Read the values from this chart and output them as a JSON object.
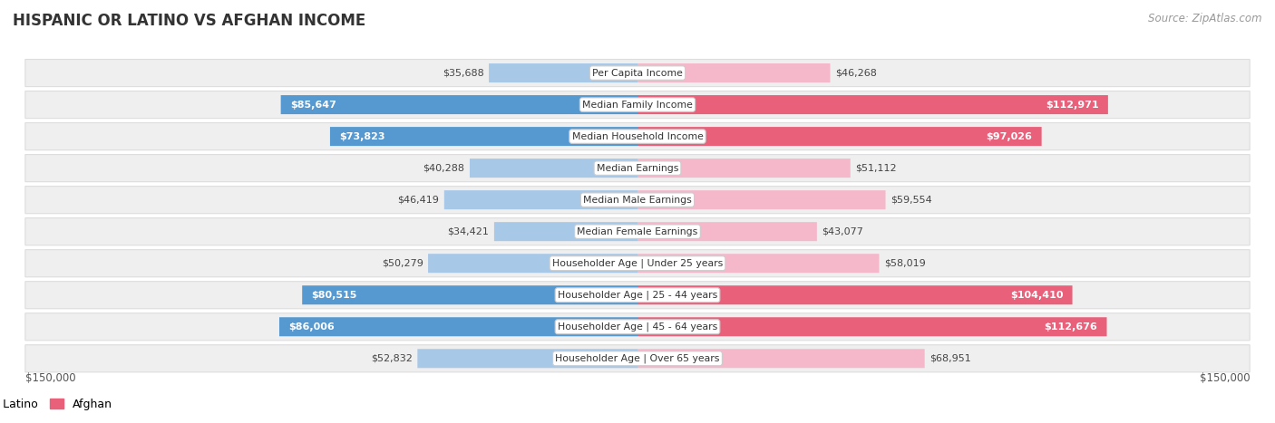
{
  "title": "HISPANIC OR LATINO VS AFGHAN INCOME",
  "source": "Source: ZipAtlas.com",
  "categories": [
    "Per Capita Income",
    "Median Family Income",
    "Median Household Income",
    "Median Earnings",
    "Median Male Earnings",
    "Median Female Earnings",
    "Householder Age | Under 25 years",
    "Householder Age | 25 - 44 years",
    "Householder Age | 45 - 64 years",
    "Householder Age | Over 65 years"
  ],
  "hispanic_values": [
    35688,
    85647,
    73823,
    40288,
    46419,
    34421,
    50279,
    80515,
    86006,
    52832
  ],
  "afghan_values": [
    46268,
    112971,
    97026,
    51112,
    59554,
    43077,
    58019,
    104410,
    112676,
    68951
  ],
  "hispanic_labels": [
    "$35,688",
    "$85,647",
    "$73,823",
    "$40,288",
    "$46,419",
    "$34,421",
    "$50,279",
    "$80,515",
    "$86,006",
    "$52,832"
  ],
  "afghan_labels": [
    "$46,268",
    "$112,971",
    "$97,026",
    "$51,112",
    "$59,554",
    "$43,077",
    "$58,019",
    "$104,410",
    "$112,676",
    "$68,951"
  ],
  "hispanic_color_light": "#a8c8e8",
  "hispanic_color_dark": "#5599d0",
  "afghan_color_light": "#f5b8cb",
  "afghan_color_dark": "#e8607a",
  "large_bar_threshold": 70000,
  "max_value": 150000,
  "xlabel_left": "$150,000",
  "xlabel_right": "$150,000",
  "legend_hispanic": "Hispanic or Latino",
  "legend_afghan": "Afghan",
  "background_color": "#ffffff",
  "row_bg_color": "#efefef",
  "row_bg_border": "#dddddd",
  "title_fontsize": 12,
  "source_fontsize": 8.5,
  "label_fontsize": 8,
  "category_fontsize": 7.8,
  "axis_label_fontsize": 8.5
}
